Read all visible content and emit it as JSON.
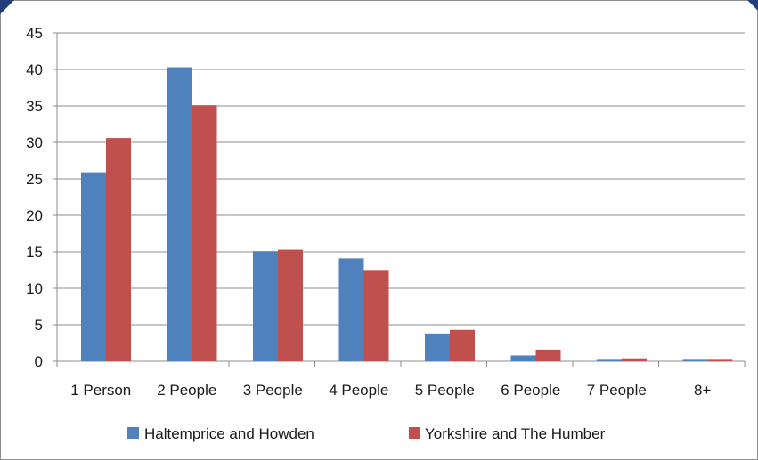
{
  "chart_data": {
    "type": "bar",
    "title": "",
    "xlabel": "",
    "ylabel": "",
    "ylim": [
      0,
      45
    ],
    "yticks": [
      0,
      5,
      10,
      15,
      20,
      25,
      30,
      35,
      40,
      45
    ],
    "grid": true,
    "legend_position": "bottom",
    "categories": [
      "1 Person",
      "2 People",
      "3 People",
      "4 People",
      "5 People",
      "6 People",
      "7 People",
      "8+"
    ],
    "series": [
      {
        "name": "Haltemprice and Howden",
        "color": "#4f81bd",
        "values": [
          25.9,
          40.3,
          15.1,
          14.1,
          3.8,
          0.8,
          0.2,
          0.2
        ]
      },
      {
        "name": "Yorkshire and The Humber",
        "color": "#c0504d",
        "values": [
          30.6,
          35.1,
          15.3,
          12.4,
          4.3,
          1.6,
          0.4,
          0.2
        ]
      }
    ]
  }
}
